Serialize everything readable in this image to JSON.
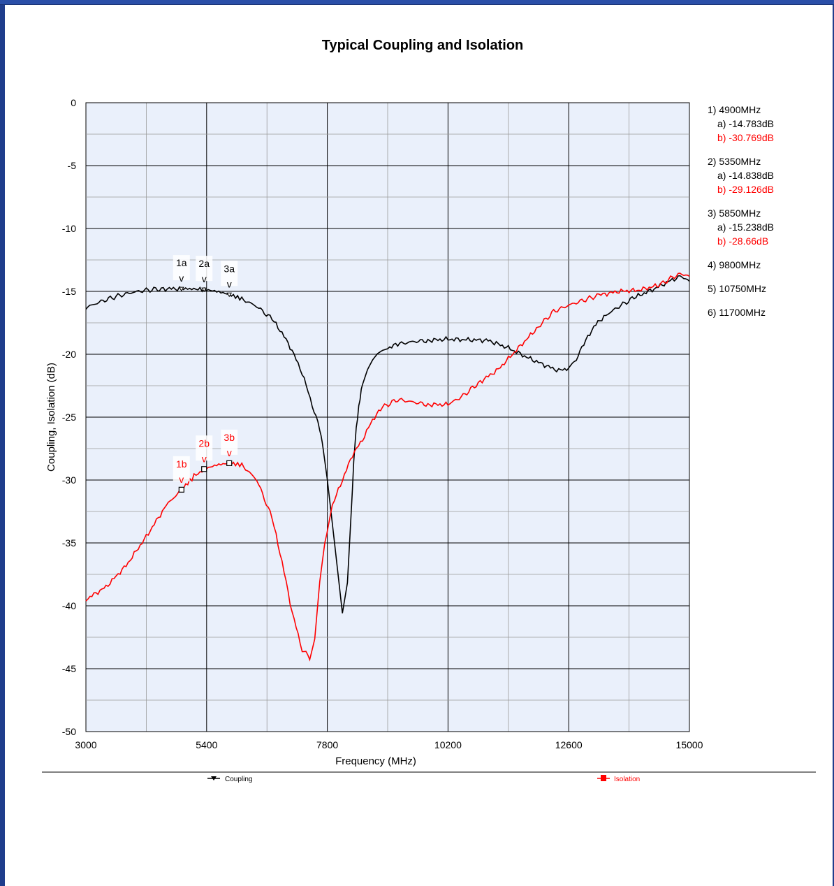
{
  "chart_data": {
    "type": "line",
    "title": "Typical Coupling and Isolation",
    "xlabel": "Frequency (MHz)",
    "ylabel": "Coupling, Isolation (dB)",
    "xlim": [
      3000,
      15000
    ],
    "ylim": [
      -50,
      0
    ],
    "x_ticks": [
      3000,
      5400,
      7800,
      10200,
      12600,
      15000
    ],
    "y_ticks": [
      0,
      -5,
      -10,
      -15,
      -20,
      -25,
      -30,
      -35,
      -40,
      -45,
      -50
    ],
    "grid": true,
    "legend_position": "bottom",
    "colors": {
      "Coupling": "#000000",
      "Isolation": "#ff0000",
      "plot_bg": "#eaf0fb"
    },
    "series": [
      {
        "name": "Coupling",
        "x": [
          3000,
          3300,
          3600,
          3900,
          4200,
          4500,
          4900,
          5350,
          5600,
          5850,
          6100,
          6400,
          6700,
          6900,
          7100,
          7300,
          7500,
          7650,
          7700,
          7800,
          7900,
          8000,
          8100,
          8200,
          8300,
          8350,
          8400,
          8450,
          8500,
          8600,
          8700,
          8800,
          8900,
          9000,
          9200,
          9500,
          9800,
          10200,
          10600,
          11000,
          11400,
          11800,
          12200,
          12400,
          12600,
          12750,
          12900,
          13100,
          13300,
          13600,
          13900,
          14300,
          14700,
          14850,
          15000
        ],
        "y": [
          -16.3,
          -15.8,
          -15.4,
          -15.1,
          -14.9,
          -14.8,
          -14.78,
          -14.84,
          -15.0,
          -15.24,
          -15.6,
          -16.2,
          -17.2,
          -18.3,
          -19.7,
          -21.5,
          -24.0,
          -26.0,
          -27.0,
          -30.0,
          -33.5,
          -37.0,
          -40.5,
          -38.0,
          -30.5,
          -27.0,
          -25.0,
          -23.5,
          -22.3,
          -21.2,
          -20.5,
          -20.0,
          -19.7,
          -19.5,
          -19.2,
          -19.0,
          -18.9,
          -18.8,
          -18.85,
          -18.9,
          -19.5,
          -20.3,
          -21.0,
          -21.3,
          -21.1,
          -20.4,
          -19.2,
          -17.8,
          -17.0,
          -16.2,
          -15.5,
          -14.8,
          -14.0,
          -13.8,
          -14.2
        ]
      },
      {
        "name": "Isolation",
        "x": [
          3000,
          3400,
          3800,
          4200,
          4600,
          4900,
          5150,
          5350,
          5600,
          5850,
          6100,
          6400,
          6700,
          6900,
          7100,
          7300,
          7450,
          7550,
          7650,
          7750,
          7900,
          8100,
          8300,
          8500,
          8700,
          8900,
          9200,
          9500,
          9800,
          10200,
          10500,
          10800,
          11200,
          11600,
          12000,
          12300,
          12600,
          12900,
          13200,
          13600,
          14000,
          14400,
          14700,
          14850,
          15000
        ],
        "y": [
          -39.5,
          -38.5,
          -36.8,
          -34.5,
          -32.0,
          -30.77,
          -29.7,
          -29.13,
          -28.8,
          -28.66,
          -28.8,
          -30.0,
          -33.0,
          -36.5,
          -40.5,
          -43.5,
          -44.1,
          -42.5,
          -38.0,
          -35.0,
          -32.0,
          -30.0,
          -28.0,
          -26.8,
          -25.2,
          -24.2,
          -23.6,
          -23.8,
          -24.0,
          -24.0,
          -23.3,
          -22.3,
          -21.2,
          -19.5,
          -17.8,
          -16.6,
          -16.1,
          -15.7,
          -15.3,
          -15.0,
          -14.9,
          -14.5,
          -13.8,
          -13.6,
          -13.8
        ]
      }
    ],
    "markers": [
      {
        "label": "1a",
        "x": 4900,
        "y": -14.783,
        "series": "Coupling"
      },
      {
        "label": "2a",
        "x": 5350,
        "y": -14.838,
        "series": "Coupling"
      },
      {
        "label": "3a",
        "x": 5850,
        "y": -15.238,
        "series": "Coupling"
      },
      {
        "label": "1b",
        "x": 4900,
        "y": -30.769,
        "series": "Isolation"
      },
      {
        "label": "2b",
        "x": 5350,
        "y": -29.126,
        "series": "Isolation"
      },
      {
        "label": "3b",
        "x": 5850,
        "y": -28.66,
        "series": "Isolation"
      }
    ],
    "marker_table": [
      {
        "freq": "1) 4900MHz",
        "a": "a) -14.783dB",
        "b": "b) -30.769dB"
      },
      {
        "freq": "2) 5350MHz",
        "a": "a) -14.838dB",
        "b": "b) -29.126dB"
      },
      {
        "freq": "3) 5850MHz",
        "a": "a) -15.238dB",
        "b": "b) -28.66dB"
      },
      {
        "freq": "4) 9800MHz"
      },
      {
        "freq": "5) 10750MHz"
      },
      {
        "freq": "6) 11700MHz"
      }
    ],
    "legend": [
      "Coupling",
      "Isolation"
    ]
  }
}
